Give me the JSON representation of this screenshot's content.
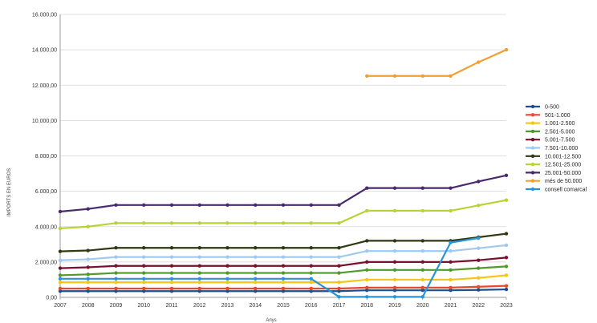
{
  "chart_data": {
    "type": "line",
    "title": "",
    "xlabel": "Anys",
    "ylabel": "IMPORTS EN EUROS",
    "ylim": [
      0,
      16000
    ],
    "yticks": [
      "0,00",
      "2.000,00",
      "4.000,00",
      "6.000,00",
      "8.000,00",
      "10.000,00",
      "12.000,00",
      "14.000,00",
      "16.000,00"
    ],
    "categories": [
      "2007",
      "2008",
      "2009",
      "2010",
      "2011",
      "2012",
      "2013",
      "2014",
      "2015",
      "2016",
      "2017",
      "2018",
      "2019",
      "2020",
      "2021",
      "2022",
      "2023"
    ],
    "grid": "horizontal",
    "legend_position": "right",
    "series": [
      {
        "name": "0-500",
        "color": "#1f4e8c",
        "values": [
          350,
          350,
          350,
          350,
          350,
          350,
          350,
          350,
          350,
          350,
          350,
          400,
          400,
          400,
          400,
          420,
          450
        ]
      },
      {
        "name": "501-1.000",
        "color": "#e8482b",
        "values": [
          500,
          500,
          500,
          500,
          500,
          500,
          500,
          500,
          500,
          500,
          500,
          550,
          550,
          550,
          550,
          600,
          650
        ]
      },
      {
        "name": "1.001-2.500",
        "color": "#f5c518",
        "values": [
          850,
          850,
          850,
          850,
          850,
          850,
          850,
          850,
          850,
          850,
          850,
          1000,
          1000,
          1000,
          1000,
          1100,
          1250
        ]
      },
      {
        "name": "2.501-5.000",
        "color": "#4f9a2a",
        "values": [
          1250,
          1300,
          1380,
          1380,
          1380,
          1380,
          1380,
          1380,
          1380,
          1380,
          1380,
          1550,
          1550,
          1550,
          1550,
          1650,
          1750
        ]
      },
      {
        "name": "5.001-7.500",
        "color": "#7a0f2e",
        "values": [
          1650,
          1700,
          1780,
          1780,
          1780,
          1780,
          1780,
          1780,
          1780,
          1780,
          1780,
          2000,
          2000,
          2000,
          2000,
          2100,
          2250
        ]
      },
      {
        "name": "7.501-10.000",
        "color": "#9ec9f0",
        "values": [
          2100,
          2150,
          2280,
          2280,
          2280,
          2280,
          2280,
          2280,
          2280,
          2280,
          2280,
          2620,
          2620,
          2620,
          2620,
          2780,
          2950
        ]
      },
      {
        "name": "10.001-12.500",
        "color": "#2d3a12",
        "values": [
          2600,
          2650,
          2800,
          2800,
          2800,
          2800,
          2800,
          2800,
          2800,
          2800,
          2800,
          3200,
          3200,
          3200,
          3200,
          3400,
          3600
        ]
      },
      {
        "name": "12.501-25.000",
        "color": "#b7d336",
        "values": [
          3900,
          4000,
          4200,
          4200,
          4200,
          4200,
          4200,
          4200,
          4200,
          4200,
          4200,
          4900,
          4900,
          4900,
          4900,
          5200,
          5500
        ]
      },
      {
        "name": "25.001-50.000",
        "color": "#4a2a6e",
        "values": [
          4850,
          5000,
          5220,
          5220,
          5220,
          5220,
          5220,
          5220,
          5220,
          5220,
          5220,
          6180,
          6180,
          6180,
          6180,
          6550,
          6900
        ]
      },
      {
        "name": "més de 50.000",
        "color": "#f0a030",
        "values": [
          null,
          null,
          null,
          null,
          null,
          null,
          null,
          null,
          null,
          null,
          null,
          12520,
          12520,
          12520,
          12520,
          13300,
          14000
        ]
      },
      {
        "name": "consell comarcal",
        "color": "#2a95d6",
        "values": [
          1050,
          1050,
          1050,
          1050,
          1050,
          1050,
          1050,
          1050,
          1050,
          1050,
          30,
          30,
          30,
          30,
          3100,
          3350,
          null
        ]
      }
    ]
  }
}
